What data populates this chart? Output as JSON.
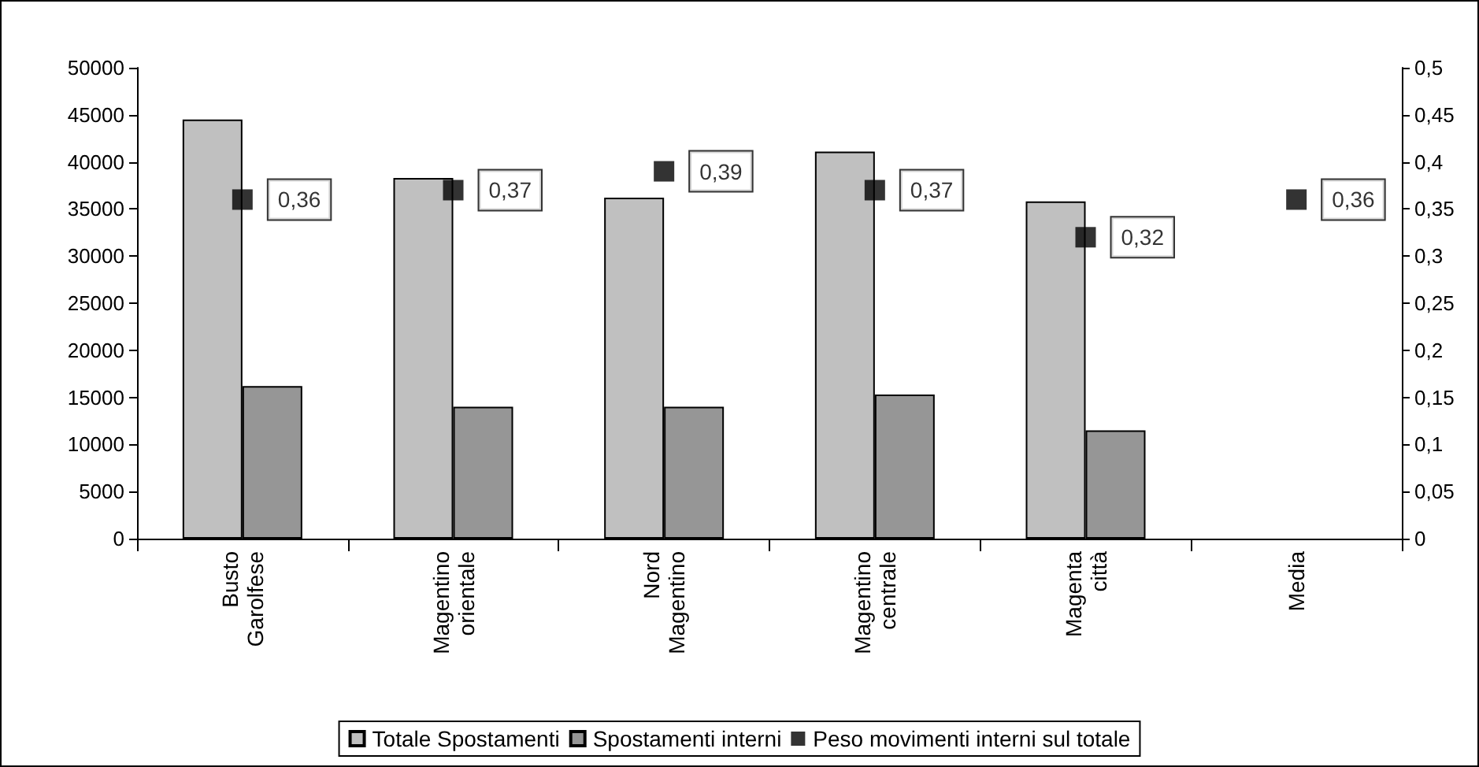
{
  "chart_data": {
    "type": "bar",
    "categories": [
      "Busto Garolfese",
      "Magentino orientale",
      "Nord Magentino",
      "Magentino centrale",
      "Magenta città",
      "Media"
    ],
    "series": [
      {
        "name": "Totale Spostamenti",
        "type": "bar",
        "color": "#c0c0c0",
        "values": [
          44500,
          38300,
          36200,
          41100,
          35800,
          null
        ]
      },
      {
        "name": "Spostamenti interni",
        "type": "bar",
        "color": "#969696",
        "values": [
          16200,
          14000,
          14000,
          15300,
          11500,
          null
        ]
      },
      {
        "name": "Peso movimenti interni sul totale",
        "type": "scatter",
        "axis": "y2",
        "color": "#000000",
        "values": [
          0.36,
          0.37,
          0.39,
          0.37,
          0.32,
          0.36
        ],
        "value_labels": [
          "0,36",
          "0,37",
          "0,39",
          "0,37",
          "0,32",
          "0,36"
        ]
      }
    ],
    "ylim": [
      0,
      50000
    ],
    "yticks": [
      0,
      5000,
      10000,
      15000,
      20000,
      25000,
      30000,
      35000,
      40000,
      45000,
      50000
    ],
    "y2lim": [
      0,
      0.5
    ],
    "y2ticks": [
      0,
      {
        "value": 0.05,
        "label": "0,05"
      },
      {
        "value": 0.1,
        "label": "0,1"
      },
      {
        "value": 0.15,
        "label": "0,15"
      },
      {
        "value": 0.2,
        "label": "0,2"
      },
      {
        "value": 0.25,
        "label": "0,25"
      },
      {
        "value": 0.3,
        "label": "0,3"
      },
      {
        "value": 0.35,
        "label": "0,35"
      },
      {
        "value": 0.4,
        "label": "0,4"
      },
      {
        "value": 0.45,
        "label": "0,45"
      },
      {
        "value": 0.5,
        "label": "0,5"
      }
    ],
    "marker": "square",
    "grid": false,
    "legend": "bottom"
  }
}
